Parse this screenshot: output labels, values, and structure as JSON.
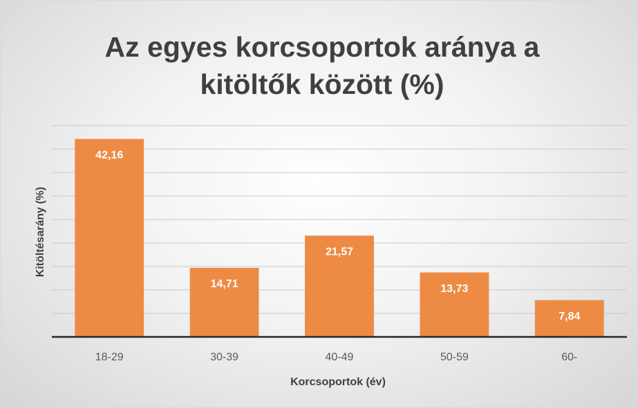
{
  "chart_data": {
    "type": "bar",
    "title": "Az egyes korcsoportok aránya a kitöltők között (%)",
    "categories": [
      "18-29",
      "30-39",
      "40-49",
      "50-59",
      "60-"
    ],
    "values": [
      42.16,
      14.71,
      21.57,
      13.73,
      7.84
    ],
    "value_labels": [
      "42,16",
      "14,71",
      "21,57",
      "13,73",
      "7,84"
    ],
    "color": "#ed8b45",
    "x_label": "Korcsoportok (év)",
    "y_label": "Kitöltésarány (%)",
    "ylim": [
      0,
      45
    ],
    "yticks": [
      0,
      5,
      10,
      15,
      20,
      25,
      30,
      35,
      40,
      45
    ],
    "grid": true
  }
}
